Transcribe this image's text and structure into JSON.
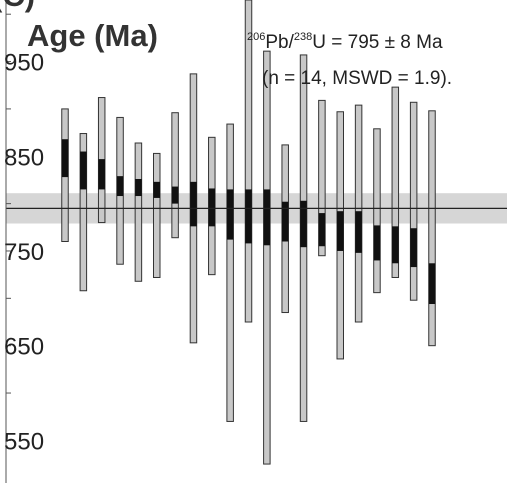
{
  "chart_data": {
    "type": "error-bar",
    "title_partial": "(C)",
    "ylabel": "Age (Ma)",
    "ylim": [
      505,
      1015
    ],
    "y_ticks": [
      550,
      650,
      750,
      850,
      950
    ],
    "annotation": {
      "line1_parts": [
        "206",
        "Pb/",
        "238",
        "U  = 795 ± 8 Ma"
      ],
      "line2": "(n = 14, MSWD = 1.9)."
    },
    "weighted_mean": {
      "age": 795,
      "uncertainty": 8
    },
    "colors": {
      "error_bar_outer": "#c8c8c8",
      "error_bar_inner": "#111111",
      "mean_band": "#d6d6d6",
      "mean_line": "#222222"
    },
    "points": [
      {
        "outer": [
          760,
          900
        ],
        "inner": [
          828,
          868
        ]
      },
      {
        "outer": [
          708,
          874
        ],
        "inner": [
          815,
          855
        ]
      },
      {
        "outer": [
          780,
          912
        ],
        "inner": [
          815,
          847
        ]
      },
      {
        "outer": [
          736,
          891
        ],
        "inner": [
          808,
          829
        ]
      },
      {
        "outer": [
          718,
          864
        ],
        "inner": [
          808,
          826
        ]
      },
      {
        "outer": [
          722,
          853
        ],
        "inner": [
          806,
          823
        ]
      },
      {
        "outer": [
          764,
          896
        ],
        "inner": [
          800,
          818
        ]
      },
      {
        "outer": [
          653,
          937
        ],
        "inner": [
          776,
          823
        ]
      },
      {
        "outer": [
          725,
          870
        ],
        "inner": [
          776,
          816
        ]
      },
      {
        "outer": [
          570,
          884
        ],
        "inner": [
          762,
          815
        ]
      },
      {
        "outer": [
          675,
          1015
        ],
        "inner": [
          758,
          815
        ]
      },
      {
        "outer": [
          525,
          961
        ],
        "inner": [
          756,
          815
        ]
      },
      {
        "outer": [
          685,
          862
        ],
        "inner": [
          760,
          802
        ]
      },
      {
        "outer": [
          570,
          957
        ],
        "inner": [
          754,
          803
        ]
      },
      {
        "outer": [
          745,
          909
        ],
        "inner": [
          755,
          790
        ]
      },
      {
        "outer": [
          636,
          897
        ],
        "inner": [
          750,
          792
        ]
      },
      {
        "outer": [
          675,
          904
        ],
        "inner": [
          748,
          792
        ]
      },
      {
        "outer": [
          706,
          879
        ],
        "inner": [
          740,
          777
        ]
      },
      {
        "outer": [
          722,
          923
        ],
        "inner": [
          737,
          776
        ]
      },
      {
        "outer": [
          698,
          907
        ],
        "inner": [
          733,
          774
        ]
      },
      {
        "outer": [
          650,
          898
        ],
        "inner": [
          694,
          737
        ]
      }
    ]
  }
}
